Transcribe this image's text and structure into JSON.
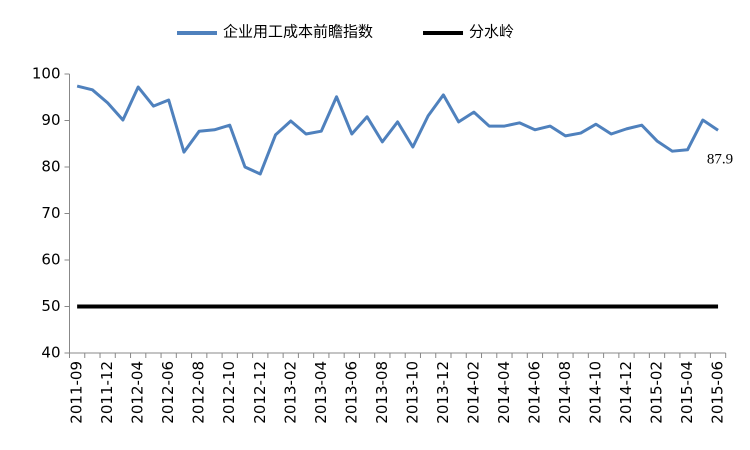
{
  "chart_data": {
    "type": "line",
    "categories": [
      "2011-09",
      null,
      "2011-12",
      null,
      "2012-04",
      null,
      "2012-06",
      null,
      "2012-08",
      null,
      "2012-10",
      null,
      "2012-12",
      null,
      "2013-02",
      null,
      "2013-04",
      null,
      "2013-06",
      null,
      "2013-08",
      null,
      "2013-10",
      null,
      "2013-12",
      null,
      "2014-02",
      null,
      "2014-04",
      null,
      "2014-06",
      null,
      "2014-08",
      null,
      "2014-10",
      null,
      "2014-12",
      null,
      "2015-02",
      null,
      "2015-04",
      null,
      "2015-06"
    ],
    "series": [
      {
        "name": "企业用工成本前瞻指数",
        "color": "#4f81bd",
        "values": [
          97.4,
          96.6,
          93.8,
          90.1,
          97.2,
          93.1,
          94.4,
          83.2,
          87.7,
          88.0,
          89.0,
          80.0,
          78.5,
          86.9,
          89.9,
          87.1,
          87.7,
          95.1,
          87.1,
          90.8,
          85.4,
          89.7,
          84.3,
          91.0,
          95.5,
          89.7,
          91.8,
          88.8,
          88.8,
          89.5,
          88.0,
          88.8,
          86.7,
          87.3,
          89.2,
          87.1,
          88.2,
          89.0,
          85.6,
          83.4,
          83.7,
          90.1,
          87.9
        ],
        "value_labels": [
          null,
          null,
          null,
          null,
          null,
          null,
          null,
          null,
          null,
          null,
          null,
          null,
          null,
          null,
          null,
          null,
          null,
          null,
          null,
          null,
          null,
          null,
          null,
          null,
          null,
          null,
          null,
          null,
          null,
          null,
          null,
          null,
          null,
          null,
          null,
          null,
          null,
          null,
          null,
          null,
          null,
          null,
          "87.9"
        ],
        "value_label_color": "#ff0000"
      },
      {
        "name": "分水岭",
        "color": "#000000",
        "values": [
          50,
          50,
          50,
          50,
          50,
          50,
          50,
          50,
          50,
          50,
          50,
          50,
          50,
          50,
          50,
          50,
          50,
          50,
          50,
          50,
          50,
          50,
          50,
          50,
          50,
          50,
          50,
          50,
          50,
          50,
          50,
          50,
          50,
          50,
          50,
          50,
          50,
          50,
          50,
          50,
          50,
          50,
          50
        ]
      }
    ],
    "ylim": [
      40,
      100
    ],
    "yticks": [
      40,
      50,
      60,
      70,
      80,
      90,
      100
    ],
    "grid": false,
    "legend": "top"
  }
}
